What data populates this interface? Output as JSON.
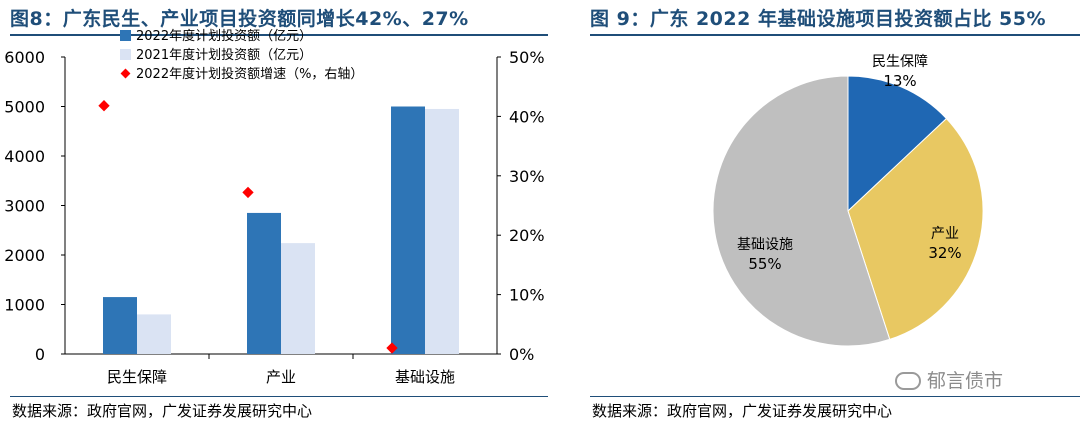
{
  "left": {
    "title": "图8：广东民生、产业项目投资额同增长42%、27%",
    "source": "数据来源：政府官网，广发证券发展研究中心"
  },
  "right": {
    "title": "图 9：广东 2022 年基础设施项目投资额占比 55%",
    "source": "数据来源：政府官网，广发证券发展研究中心"
  },
  "watermark": "郁言债市",
  "chart_data": [
    {
      "type": "bar",
      "title": "",
      "categories": [
        "民生保障",
        "产业",
        "基础设施"
      ],
      "series": [
        {
          "name": "2022年度计划投资额（亿元）",
          "kind": "bar",
          "axis": "left",
          "color": "#2e75b6",
          "values": [
            1150,
            2850,
            5000
          ]
        },
        {
          "name": "2021年度计划投资额（亿元）",
          "kind": "bar",
          "axis": "left",
          "color": "#dae3f3",
          "values": [
            800,
            2240,
            4950
          ]
        },
        {
          "name": "2022年度计划投资额增速（%，右轴）",
          "kind": "scatter",
          "axis": "right",
          "color": "#ff0000",
          "values": [
            41.8,
            27.2,
            1.0
          ]
        }
      ],
      "y_left": {
        "ylim": [
          0,
          6000
        ],
        "ticks": [
          "0",
          "1000",
          "2000",
          "3000",
          "4000",
          "5000",
          "6000"
        ]
      },
      "y_right": {
        "ylim": [
          0,
          50
        ],
        "ticks": [
          "0%",
          "10%",
          "20%",
          "30%",
          "40%",
          "50%"
        ]
      },
      "grid": false,
      "legend": "top-left"
    },
    {
      "type": "pie",
      "title": "",
      "slices": [
        {
          "label": "民生保障",
          "value": 13,
          "value_label": "13%",
          "color": "#1f67b3"
        },
        {
          "label": "产业",
          "value": 32,
          "value_label": "32%",
          "color": "#e8c862"
        },
        {
          "label": "基础设施",
          "value": 55,
          "value_label": "55%",
          "color": "#bfbfbf"
        }
      ]
    }
  ]
}
